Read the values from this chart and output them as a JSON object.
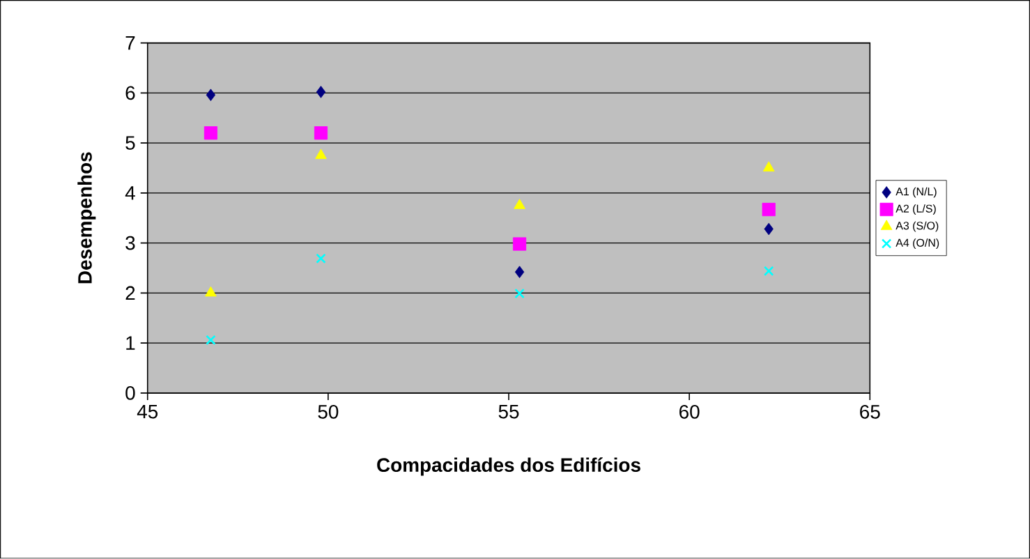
{
  "chart_data": {
    "type": "scatter",
    "xlabel": "Compacidades dos Edifícios",
    "ylabel": "Desempenhos",
    "x": [
      46.75,
      49.8,
      55.3,
      62.2
    ],
    "series": [
      {
        "name": "A1 (N/L)",
        "color": "#000080",
        "marker": "diamond",
        "values": [
          5.96,
          6.02,
          2.42,
          3.28
        ]
      },
      {
        "name": "A2 (L/S)",
        "color": "#ff00ff",
        "marker": "square",
        "values": [
          5.2,
          5.2,
          2.98,
          3.67
        ]
      },
      {
        "name": "A3 (S/O)",
        "color": "#ffff00",
        "marker": "triangle",
        "values": [
          2.0,
          4.75,
          3.75,
          4.5
        ]
      },
      {
        "name": "A4 (O/N)",
        "color": "#00ffff",
        "marker": "cross",
        "values": [
          1.06,
          2.69,
          1.99,
          2.44
        ]
      }
    ],
    "xlim": [
      45,
      65
    ],
    "xticks": [
      45,
      50,
      55,
      60,
      65
    ],
    "ylim": [
      0,
      7
    ],
    "yticks": [
      0,
      1,
      2,
      3,
      4,
      5,
      6,
      7
    ],
    "grid": "y",
    "legend": "right"
  }
}
